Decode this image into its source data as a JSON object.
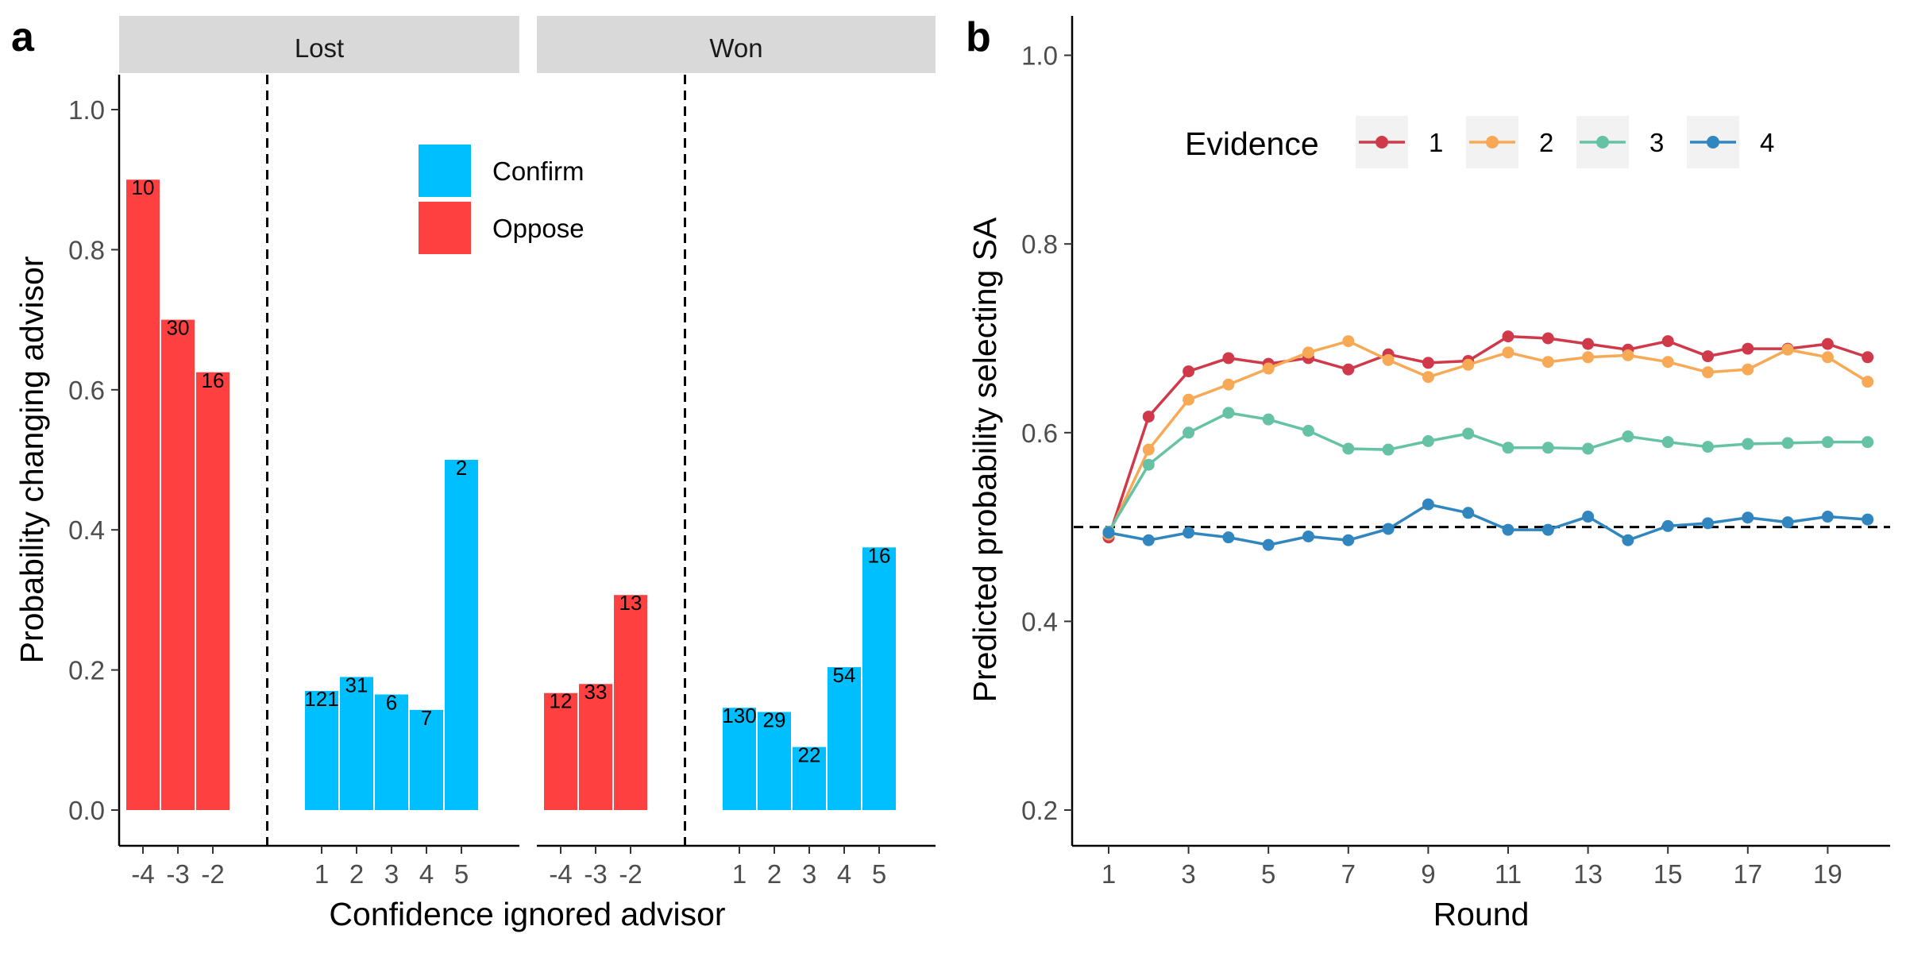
{
  "chart_data": [
    {
      "panel": "a",
      "type": "bar",
      "xlabel": "Confidence ignored advisor",
      "ylabel": "Probability changing advisor",
      "ylim": [
        0,
        1.0
      ],
      "yticks": [
        0.0,
        0.2,
        0.4,
        0.6,
        0.8,
        1.0
      ],
      "ytick_labels": [
        "0.0",
        "0.2",
        "0.4",
        "0.6",
        "0.8",
        "1.0"
      ],
      "grid": false,
      "legend": {
        "placement": "top-right",
        "entries": [
          {
            "name": "Confirm",
            "color": "#00BFFF"
          },
          {
            "name": "Oppose",
            "color": "#FF4040"
          }
        ]
      },
      "facets": [
        {
          "name": "Lost",
          "bars": [
            {
              "x": "-4",
              "value": 0.9,
              "n": "10",
              "group": "Oppose"
            },
            {
              "x": "-3",
              "value": 0.7,
              "n": "30",
              "group": "Oppose"
            },
            {
              "x": "-2",
              "value": 0.625,
              "n": "16",
              "group": "Oppose"
            },
            {
              "x": "1",
              "value": 0.17,
              "n": "121",
              "group": "Confirm"
            },
            {
              "x": "2",
              "value": 0.19,
              "n": "31",
              "group": "Confirm"
            },
            {
              "x": "3",
              "value": 0.165,
              "n": "6",
              "group": "Confirm"
            },
            {
              "x": "4",
              "value": 0.143,
              "n": "7",
              "group": "Confirm"
            },
            {
              "x": "5",
              "value": 0.5,
              "n": "2",
              "group": "Confirm"
            }
          ]
        },
        {
          "name": "Won",
          "bars": [
            {
              "x": "-4",
              "value": 0.167,
              "n": "12",
              "group": "Oppose"
            },
            {
              "x": "-3",
              "value": 0.18,
              "n": "33",
              "group": "Oppose"
            },
            {
              "x": "-2",
              "value": 0.307,
              "n": "13",
              "group": "Oppose"
            },
            {
              "x": "1",
              "value": 0.146,
              "n": "130",
              "group": "Confirm"
            },
            {
              "x": "2",
              "value": 0.14,
              "n": "29",
              "group": "Confirm"
            },
            {
              "x": "3",
              "value": 0.09,
              "n": "22",
              "group": "Confirm"
            },
            {
              "x": "4",
              "value": 0.204,
              "n": "54",
              "group": "Confirm"
            },
            {
              "x": "5",
              "value": 0.375,
              "n": "16",
              "group": "Confirm"
            }
          ]
        }
      ],
      "reference_line_between": [
        "-2",
        "1"
      ]
    },
    {
      "panel": "b",
      "type": "line",
      "xlabel": "Round",
      "ylabel": "Predicted probability selecting SA",
      "xlim": [
        1,
        20
      ],
      "xticks": [
        1,
        3,
        5,
        7,
        9,
        11,
        13,
        15,
        17,
        19
      ],
      "ylim": [
        0.18,
        1.03
      ],
      "yticks": [
        0.2,
        0.4,
        0.6,
        0.8,
        1.0
      ],
      "ytick_labels": [
        "0.2",
        "0.4",
        "0.6",
        "0.8",
        "1.0"
      ],
      "hline": 0.5,
      "grid": false,
      "legend": {
        "title": "Evidence",
        "placement": "top"
      },
      "x": [
        1,
        2,
        3,
        4,
        5,
        6,
        7,
        8,
        9,
        10,
        11,
        12,
        13,
        14,
        15,
        16,
        17,
        18,
        19,
        20
      ],
      "series": [
        {
          "name": "1",
          "color": "#D0394A",
          "values": [
            0.489,
            0.617,
            0.665,
            0.679,
            0.673,
            0.679,
            0.667,
            0.683,
            0.674,
            0.676,
            0.702,
            0.7,
            0.694,
            0.688,
            0.697,
            0.681,
            0.689,
            0.689,
            0.694,
            0.68
          ]
        },
        {
          "name": "2",
          "color": "#F8A955",
          "values": [
            0.492,
            0.582,
            0.635,
            0.651,
            0.668,
            0.685,
            0.697,
            0.677,
            0.659,
            0.672,
            0.685,
            0.675,
            0.68,
            0.682,
            0.675,
            0.664,
            0.667,
            0.688,
            0.68,
            0.654
          ]
        },
        {
          "name": "3",
          "color": "#66C2A5",
          "values": [
            0.495,
            0.566,
            0.6,
            0.621,
            0.614,
            0.602,
            0.583,
            0.582,
            0.591,
            0.599,
            0.584,
            0.584,
            0.583,
            0.596,
            0.59,
            0.585,
            0.588,
            0.589,
            0.59,
            0.59
          ]
        },
        {
          "name": "4",
          "color": "#3186BF",
          "values": [
            0.494,
            0.486,
            0.494,
            0.489,
            0.481,
            0.49,
            0.486,
            0.498,
            0.524,
            0.515,
            0.497,
            0.497,
            0.511,
            0.486,
            0.501,
            0.504,
            0.51,
            0.505,
            0.511,
            0.508
          ]
        }
      ]
    }
  ]
}
